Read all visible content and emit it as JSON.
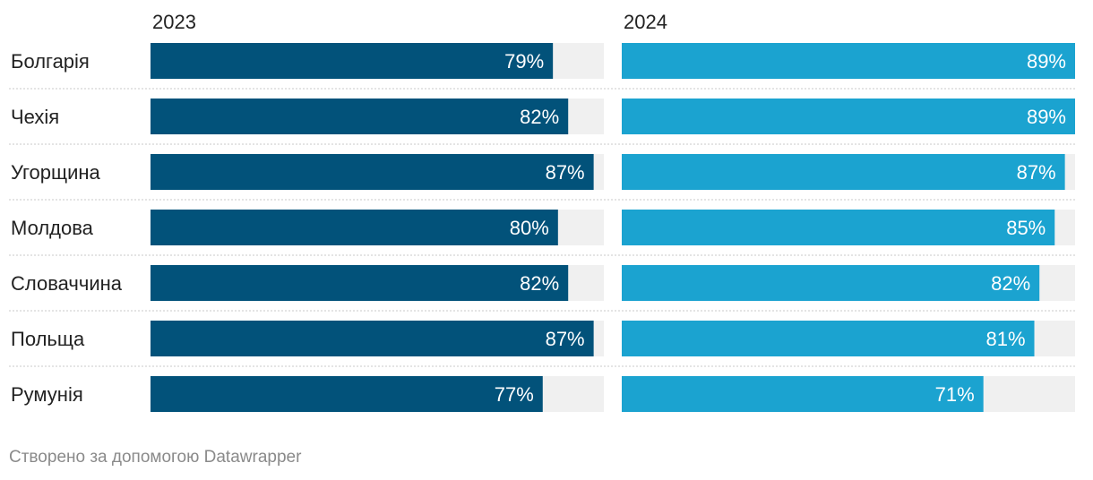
{
  "chart_data": {
    "type": "bar",
    "orientation": "horizontal",
    "layout": "small-multiples",
    "categories": [
      "Болгарія",
      "Чехія",
      "Угорщина",
      "Молдова",
      "Словаччина",
      "Польща",
      "Румунія"
    ],
    "series": [
      {
        "name": "2023",
        "values": [
          79,
          82,
          87,
          80,
          82,
          87,
          77
        ],
        "labels": [
          "79%",
          "82%",
          "87%",
          "80%",
          "82%",
          "87%",
          "77%"
        ],
        "color": "#02527a"
      },
      {
        "name": "2024",
        "values": [
          89,
          89,
          87,
          85,
          82,
          81,
          71
        ],
        "labels": [
          "89%",
          "89%",
          "87%",
          "85%",
          "82%",
          "81%",
          "71%"
        ],
        "color": "#1ba3d0"
      }
    ],
    "xlim": [
      0,
      89
    ],
    "background_bar_color": "#f0f0f0",
    "value_label_color": "#ffffff",
    "grid": false
  },
  "footer": {
    "credit": "Створено за допомогою Datawrapper"
  }
}
